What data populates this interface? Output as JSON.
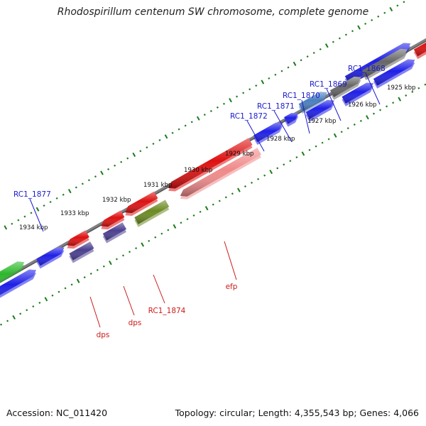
{
  "title": "Rhodospirillum centenum SW chromosome, complete genome",
  "footer": {
    "accession": "Accession: NC_011420",
    "summary": "Topology: circular; Length: 4,355,543 bp; Genes: 4,066"
  },
  "colors": {
    "backbone": "#808080",
    "ticks": "#1a7a1a",
    "label_forward": "#1a1acc",
    "label_reverse": "#cc1a1a"
  },
  "ticks": [
    {
      "label": "1925 kbp"
    },
    {
      "label": "1926 kbp"
    },
    {
      "label": "1927 kbp"
    },
    {
      "label": "1928 kbp"
    },
    {
      "label": "1929 kbp"
    },
    {
      "label": "1930 kbp"
    },
    {
      "label": "1931 kbp"
    },
    {
      "label": "1932 kbp"
    },
    {
      "label": "1933 kbp"
    },
    {
      "label": "1934 kbp"
    }
  ],
  "gene_labels": [
    {
      "text": "RC1_1868",
      "strand": "forward"
    },
    {
      "text": "RC1_1869",
      "strand": "forward"
    },
    {
      "text": "RC1_1870",
      "strand": "forward"
    },
    {
      "text": "RC1_1871",
      "strand": "forward"
    },
    {
      "text": "RC1_1872",
      "strand": "forward"
    },
    {
      "text": "RC1_1877",
      "strand": "forward"
    },
    {
      "text": "efp",
      "strand": "reverse"
    },
    {
      "text": "RC1_1874",
      "strand": "reverse"
    },
    {
      "text": "dps",
      "strand": "reverse"
    },
    {
      "text": "dps",
      "strand": "reverse"
    }
  ],
  "features": [
    {
      "color": "#1f1fe8",
      "strand": "forward"
    },
    {
      "color": "#2ab82a",
      "strand": "forward"
    },
    {
      "color": "#1f1fe8",
      "strand": "forward"
    },
    {
      "color": "#1f1fe8",
      "strand": "forward"
    },
    {
      "color": "#1f1fe8",
      "strand": "forward"
    },
    {
      "color": "#1f1fe8",
      "strand": "forward"
    },
    {
      "color": "#4a7fc0",
      "strand": "forward"
    },
    {
      "color": "#1f1fe8",
      "strand": "forward"
    },
    {
      "color": "#666666",
      "strand": "forward"
    },
    {
      "color": "#1f1fe8",
      "strand": "forward"
    },
    {
      "color": "#666666",
      "strand": "forward"
    },
    {
      "color": "#1f1fe8",
      "strand": "forward"
    },
    {
      "color": "#dd1111",
      "strand": "forward"
    },
    {
      "color": "#dd1111",
      "strand": "reverse"
    },
    {
      "color": "#dd1111",
      "strand": "reverse"
    },
    {
      "color": "#dd1111",
      "strand": "reverse"
    },
    {
      "color": "#dd1111",
      "strand": "reverse"
    },
    {
      "color": "#f08a8a",
      "strand": "reverse"
    },
    {
      "color": "#4a3f8f",
      "strand": "reverse"
    },
    {
      "color": "#4a3f8f",
      "strand": "reverse"
    },
    {
      "color": "#6b8a22",
      "strand": "reverse"
    }
  ]
}
